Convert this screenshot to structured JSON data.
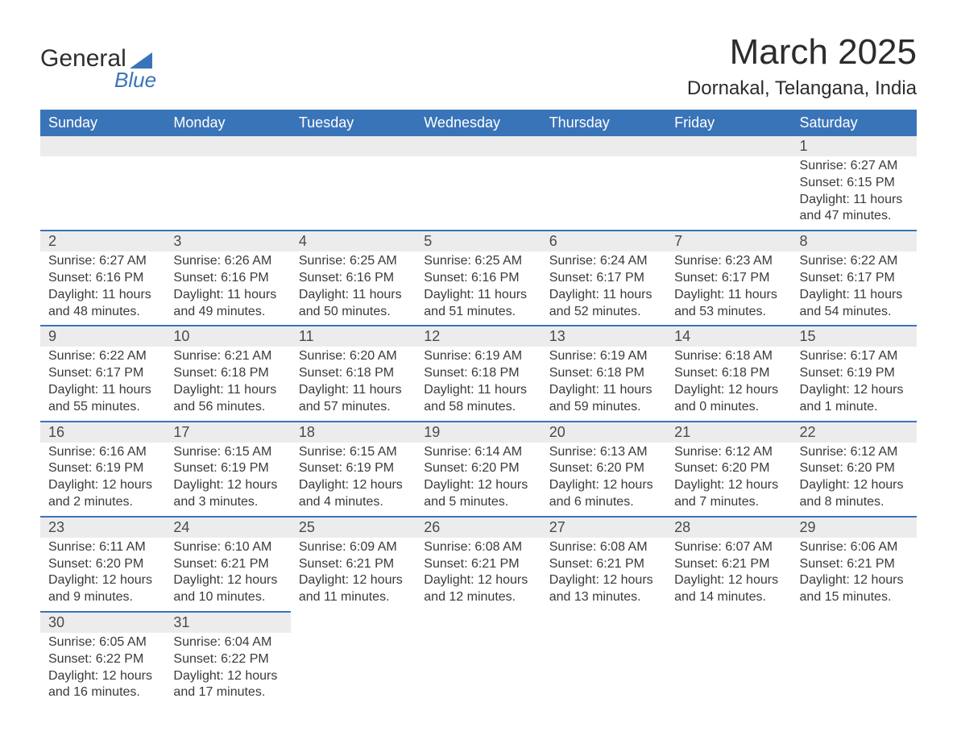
{
  "logo": {
    "text1": "General",
    "text2": "Blue",
    "shape_color": "#3a74b8"
  },
  "title": "March 2025",
  "location": "Dornakal, Telangana, India",
  "colors": {
    "header_bg": "#3a74b8",
    "header_text": "#ffffff",
    "daynum_bg": "#ececec",
    "border": "#3a74b8",
    "body_text": "#3a3a3a",
    "background": "#ffffff"
  },
  "day_names": [
    "Sunday",
    "Monday",
    "Tuesday",
    "Wednesday",
    "Thursday",
    "Friday",
    "Saturday"
  ],
  "weeks": [
    [
      null,
      null,
      null,
      null,
      null,
      null,
      {
        "n": "1",
        "sr": "Sunrise: 6:27 AM",
        "ss": "Sunset: 6:15 PM",
        "d1": "Daylight: 11 hours",
        "d2": "and 47 minutes."
      }
    ],
    [
      {
        "n": "2",
        "sr": "Sunrise: 6:27 AM",
        "ss": "Sunset: 6:16 PM",
        "d1": "Daylight: 11 hours",
        "d2": "and 48 minutes."
      },
      {
        "n": "3",
        "sr": "Sunrise: 6:26 AM",
        "ss": "Sunset: 6:16 PM",
        "d1": "Daylight: 11 hours",
        "d2": "and 49 minutes."
      },
      {
        "n": "4",
        "sr": "Sunrise: 6:25 AM",
        "ss": "Sunset: 6:16 PM",
        "d1": "Daylight: 11 hours",
        "d2": "and 50 minutes."
      },
      {
        "n": "5",
        "sr": "Sunrise: 6:25 AM",
        "ss": "Sunset: 6:16 PM",
        "d1": "Daylight: 11 hours",
        "d2": "and 51 minutes."
      },
      {
        "n": "6",
        "sr": "Sunrise: 6:24 AM",
        "ss": "Sunset: 6:17 PM",
        "d1": "Daylight: 11 hours",
        "d2": "and 52 minutes."
      },
      {
        "n": "7",
        "sr": "Sunrise: 6:23 AM",
        "ss": "Sunset: 6:17 PM",
        "d1": "Daylight: 11 hours",
        "d2": "and 53 minutes."
      },
      {
        "n": "8",
        "sr": "Sunrise: 6:22 AM",
        "ss": "Sunset: 6:17 PM",
        "d1": "Daylight: 11 hours",
        "d2": "and 54 minutes."
      }
    ],
    [
      {
        "n": "9",
        "sr": "Sunrise: 6:22 AM",
        "ss": "Sunset: 6:17 PM",
        "d1": "Daylight: 11 hours",
        "d2": "and 55 minutes."
      },
      {
        "n": "10",
        "sr": "Sunrise: 6:21 AM",
        "ss": "Sunset: 6:18 PM",
        "d1": "Daylight: 11 hours",
        "d2": "and 56 minutes."
      },
      {
        "n": "11",
        "sr": "Sunrise: 6:20 AM",
        "ss": "Sunset: 6:18 PM",
        "d1": "Daylight: 11 hours",
        "d2": "and 57 minutes."
      },
      {
        "n": "12",
        "sr": "Sunrise: 6:19 AM",
        "ss": "Sunset: 6:18 PM",
        "d1": "Daylight: 11 hours",
        "d2": "and 58 minutes."
      },
      {
        "n": "13",
        "sr": "Sunrise: 6:19 AM",
        "ss": "Sunset: 6:18 PM",
        "d1": "Daylight: 11 hours",
        "d2": "and 59 minutes."
      },
      {
        "n": "14",
        "sr": "Sunrise: 6:18 AM",
        "ss": "Sunset: 6:18 PM",
        "d1": "Daylight: 12 hours",
        "d2": "and 0 minutes."
      },
      {
        "n": "15",
        "sr": "Sunrise: 6:17 AM",
        "ss": "Sunset: 6:19 PM",
        "d1": "Daylight: 12 hours",
        "d2": "and 1 minute."
      }
    ],
    [
      {
        "n": "16",
        "sr": "Sunrise: 6:16 AM",
        "ss": "Sunset: 6:19 PM",
        "d1": "Daylight: 12 hours",
        "d2": "and 2 minutes."
      },
      {
        "n": "17",
        "sr": "Sunrise: 6:15 AM",
        "ss": "Sunset: 6:19 PM",
        "d1": "Daylight: 12 hours",
        "d2": "and 3 minutes."
      },
      {
        "n": "18",
        "sr": "Sunrise: 6:15 AM",
        "ss": "Sunset: 6:19 PM",
        "d1": "Daylight: 12 hours",
        "d2": "and 4 minutes."
      },
      {
        "n": "19",
        "sr": "Sunrise: 6:14 AM",
        "ss": "Sunset: 6:20 PM",
        "d1": "Daylight: 12 hours",
        "d2": "and 5 minutes."
      },
      {
        "n": "20",
        "sr": "Sunrise: 6:13 AM",
        "ss": "Sunset: 6:20 PM",
        "d1": "Daylight: 12 hours",
        "d2": "and 6 minutes."
      },
      {
        "n": "21",
        "sr": "Sunrise: 6:12 AM",
        "ss": "Sunset: 6:20 PM",
        "d1": "Daylight: 12 hours",
        "d2": "and 7 minutes."
      },
      {
        "n": "22",
        "sr": "Sunrise: 6:12 AM",
        "ss": "Sunset: 6:20 PM",
        "d1": "Daylight: 12 hours",
        "d2": "and 8 minutes."
      }
    ],
    [
      {
        "n": "23",
        "sr": "Sunrise: 6:11 AM",
        "ss": "Sunset: 6:20 PM",
        "d1": "Daylight: 12 hours",
        "d2": "and 9 minutes."
      },
      {
        "n": "24",
        "sr": "Sunrise: 6:10 AM",
        "ss": "Sunset: 6:21 PM",
        "d1": "Daylight: 12 hours",
        "d2": "and 10 minutes."
      },
      {
        "n": "25",
        "sr": "Sunrise: 6:09 AM",
        "ss": "Sunset: 6:21 PM",
        "d1": "Daylight: 12 hours",
        "d2": "and 11 minutes."
      },
      {
        "n": "26",
        "sr": "Sunrise: 6:08 AM",
        "ss": "Sunset: 6:21 PM",
        "d1": "Daylight: 12 hours",
        "d2": "and 12 minutes."
      },
      {
        "n": "27",
        "sr": "Sunrise: 6:08 AM",
        "ss": "Sunset: 6:21 PM",
        "d1": "Daylight: 12 hours",
        "d2": "and 13 minutes."
      },
      {
        "n": "28",
        "sr": "Sunrise: 6:07 AM",
        "ss": "Sunset: 6:21 PM",
        "d1": "Daylight: 12 hours",
        "d2": "and 14 minutes."
      },
      {
        "n": "29",
        "sr": "Sunrise: 6:06 AM",
        "ss": "Sunset: 6:21 PM",
        "d1": "Daylight: 12 hours",
        "d2": "and 15 minutes."
      }
    ],
    [
      {
        "n": "30",
        "sr": "Sunrise: 6:05 AM",
        "ss": "Sunset: 6:22 PM",
        "d1": "Daylight: 12 hours",
        "d2": "and 16 minutes."
      },
      {
        "n": "31",
        "sr": "Sunrise: 6:04 AM",
        "ss": "Sunset: 6:22 PM",
        "d1": "Daylight: 12 hours",
        "d2": "and 17 minutes."
      },
      null,
      null,
      null,
      null,
      null
    ]
  ]
}
